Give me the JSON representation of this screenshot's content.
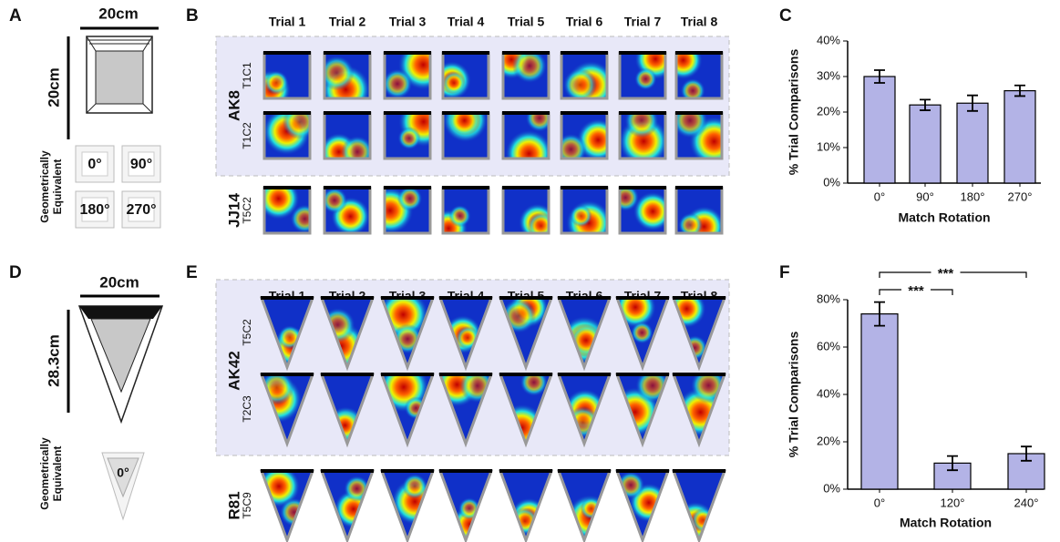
{
  "panels": {
    "a": {
      "label": "A",
      "arena_width": "20cm",
      "arena_height": "20cm",
      "equivalent": [
        "Geometrically",
        "Equivalent"
      ],
      "rotations": [
        "0°",
        "90°",
        "180°",
        "270°"
      ]
    },
    "b": {
      "label": "B",
      "trials": [
        "Trial 1",
        "Trial 2",
        "Trial 3",
        "Trial 4",
        "Trial 5",
        "Trial 6",
        "Trial 7",
        "Trial 8"
      ],
      "rows": [
        {
          "animal": "AK8",
          "cells": [
            "T1C1",
            "T1C2"
          ]
        },
        {
          "animal": "JJ14",
          "cells": [
            "T5C2"
          ]
        }
      ]
    },
    "d": {
      "label": "D",
      "arena_width": "20cm",
      "arena_height": "28.3cm",
      "equivalent": [
        "Geometrically",
        "Equivalent"
      ],
      "rotations": [
        "0°"
      ]
    },
    "e": {
      "label": "E",
      "trials": [
        "Trial 1",
        "Trial 2",
        "Trial 3",
        "Trial 4",
        "Trial 5",
        "Trial 6",
        "Trial 7",
        "Trial 8"
      ],
      "rows": [
        {
          "animal": "AK42",
          "cells": [
            "T5C2",
            "T2C3"
          ]
        },
        {
          "animal": "R81",
          "cells": [
            "T5C9"
          ]
        }
      ]
    }
  },
  "chart_data": [
    {
      "type": "bar",
      "panel": "C",
      "ylabel": "% Trial Comparisons",
      "xlabel": "Match Rotation",
      "categories": [
        "0°",
        "90°",
        "180°",
        "270°"
      ],
      "values": [
        30,
        22,
        22.5,
        26
      ],
      "errors": [
        1.8,
        1.5,
        2.2,
        1.5
      ],
      "color": "#b3b3e6",
      "ylim": [
        0,
        40
      ],
      "yticks": [
        {
          "value": 0,
          "label": "0%"
        },
        {
          "value": 10,
          "label": "10%"
        },
        {
          "value": 20,
          "label": "20%"
        },
        {
          "value": 30,
          "label": "30%"
        },
        {
          "value": 40,
          "label": "40%"
        }
      ]
    },
    {
      "type": "bar",
      "panel": "F",
      "ylabel": "% Trial Comparisons",
      "xlabel": "Match Rotation",
      "categories": [
        "0°",
        "120°",
        "240°"
      ],
      "values": [
        74,
        11,
        15
      ],
      "errors": [
        5,
        3,
        3
      ],
      "color": "#b3b3e6",
      "ylim": [
        0,
        80
      ],
      "yticks": [
        {
          "value": 0,
          "label": "0%"
        },
        {
          "value": 20,
          "label": "20%"
        },
        {
          "value": 40,
          "label": "40%"
        },
        {
          "value": 60,
          "label": "60%"
        },
        {
          "value": 80,
          "label": "80%"
        }
      ],
      "annotations": [
        "***",
        "***"
      ]
    }
  ]
}
